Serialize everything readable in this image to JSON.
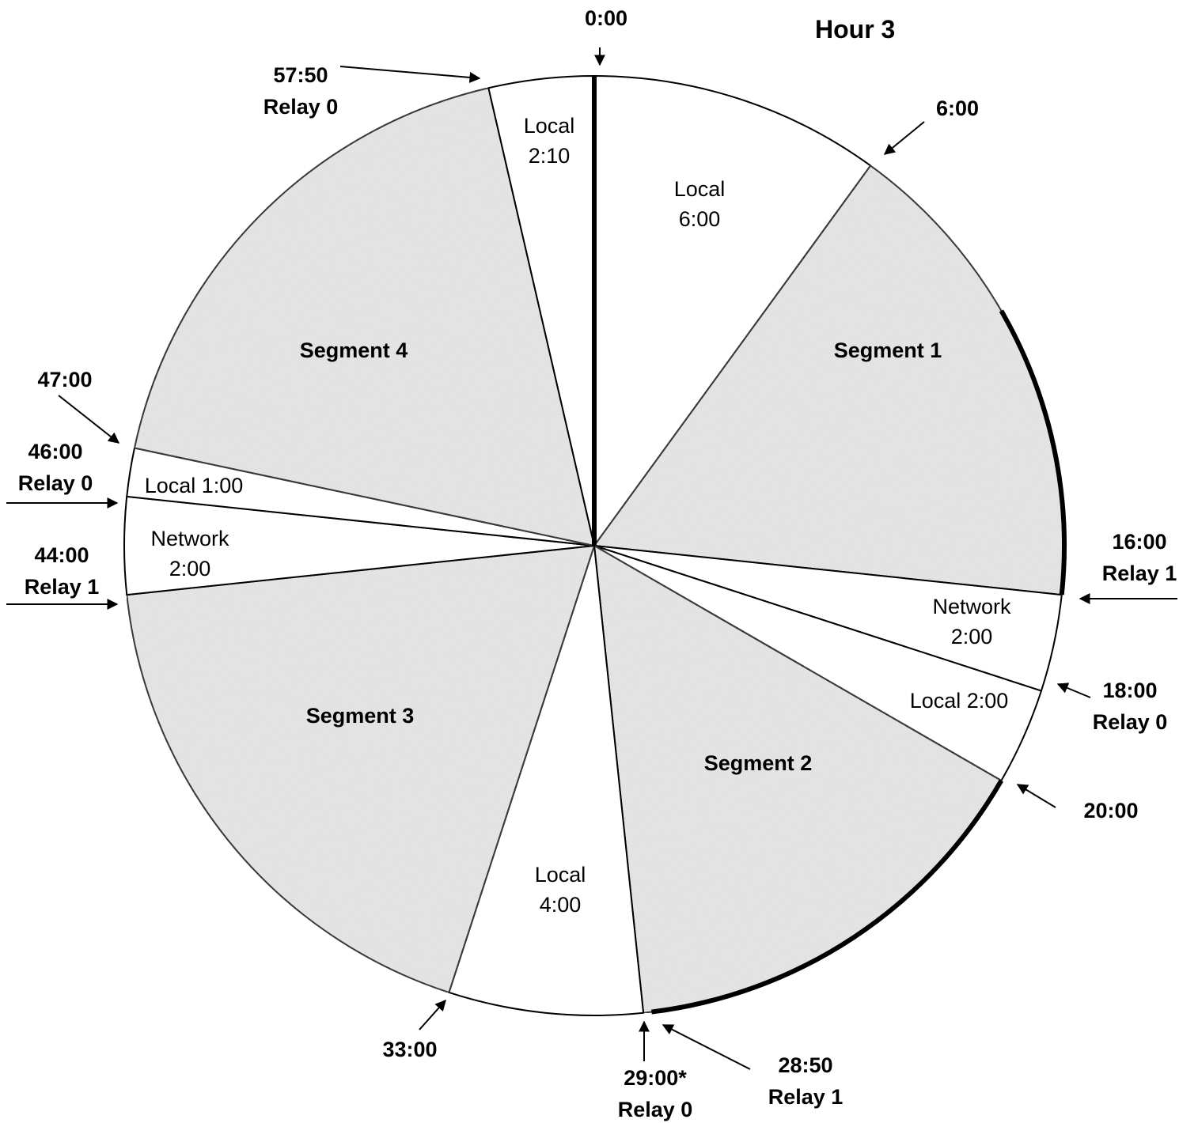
{
  "title": "Hour 3",
  "colors": {
    "shaded": "#e6e6e6",
    "white": "#ffffff",
    "stroke": "#000000"
  },
  "slices": [
    {
      "id": "local-6",
      "start": 0,
      "end": 6,
      "shaded": false,
      "lines": [
        "Local",
        "6:00"
      ],
      "bold": false
    },
    {
      "id": "segment-1",
      "start": 6,
      "end": 16,
      "shaded": true,
      "lines": [
        "Segment 1"
      ],
      "bold": true
    },
    {
      "id": "network-2a",
      "start": 16,
      "end": 18,
      "shaded": false,
      "lines": [
        "Network",
        "2:00"
      ],
      "bold": false
    },
    {
      "id": "local-2",
      "start": 18,
      "end": 20,
      "shaded": false,
      "lines": [
        "Local 2:00"
      ],
      "bold": false
    },
    {
      "id": "segment-2",
      "start": 20,
      "end": 29,
      "shaded": true,
      "lines": [
        "Segment 2"
      ],
      "bold": true
    },
    {
      "id": "local-4",
      "start": 29,
      "end": 33,
      "shaded": false,
      "lines": [
        "Local",
        "4:00"
      ],
      "bold": false
    },
    {
      "id": "segment-3",
      "start": 33,
      "end": 44,
      "shaded": true,
      "lines": [
        "Segment 3"
      ],
      "bold": true
    },
    {
      "id": "network-2b",
      "start": 44,
      "end": 46,
      "shaded": false,
      "lines": [
        "Network",
        "2:00"
      ],
      "bold": false
    },
    {
      "id": "local-1",
      "start": 46,
      "end": 47,
      "shaded": false,
      "lines": [
        "Local 1:00"
      ],
      "bold": false
    },
    {
      "id": "segment-4",
      "start": 47,
      "end": 57.833,
      "shaded": true,
      "lines": [
        "Segment 4"
      ],
      "bold": true
    },
    {
      "id": "local-2-10",
      "start": 57.833,
      "end": 60,
      "shaded": false,
      "lines": [
        "Local",
        "2:10"
      ],
      "bold": false
    }
  ],
  "markers": [
    {
      "id": "marker-0-00",
      "time": 0,
      "lines": [
        "0:00"
      ]
    },
    {
      "id": "marker-6-00",
      "time": 6,
      "lines": [
        "6:00"
      ]
    },
    {
      "id": "marker-16-00",
      "time": 16,
      "lines": [
        "16:00",
        "Relay 1"
      ]
    },
    {
      "id": "marker-18-00",
      "time": 18,
      "lines": [
        "18:00",
        "Relay 0"
      ]
    },
    {
      "id": "marker-20-00",
      "time": 20,
      "lines": [
        "20:00"
      ]
    },
    {
      "id": "marker-28-50",
      "time": 28.833,
      "lines": [
        "28:50",
        "Relay 1"
      ]
    },
    {
      "id": "marker-29-00",
      "time": 29,
      "lines": [
        "29:00*",
        "Relay 0"
      ]
    },
    {
      "id": "marker-33-00",
      "time": 33,
      "lines": [
        "33:00"
      ]
    },
    {
      "id": "marker-44-00",
      "time": 44,
      "lines": [
        "44:00",
        "Relay 1"
      ]
    },
    {
      "id": "marker-46-00",
      "time": 46,
      "lines": [
        "46:00",
        "Relay 0"
      ]
    },
    {
      "id": "marker-47-00",
      "time": 47,
      "lines": [
        "47:00"
      ]
    },
    {
      "id": "marker-57-50",
      "time": 57.833,
      "lines": [
        "57:50",
        "Relay 0"
      ]
    }
  ],
  "highlight_arcs": [
    {
      "start": 10,
      "end": 16
    },
    {
      "start": 20,
      "end": 28.833
    }
  ]
}
